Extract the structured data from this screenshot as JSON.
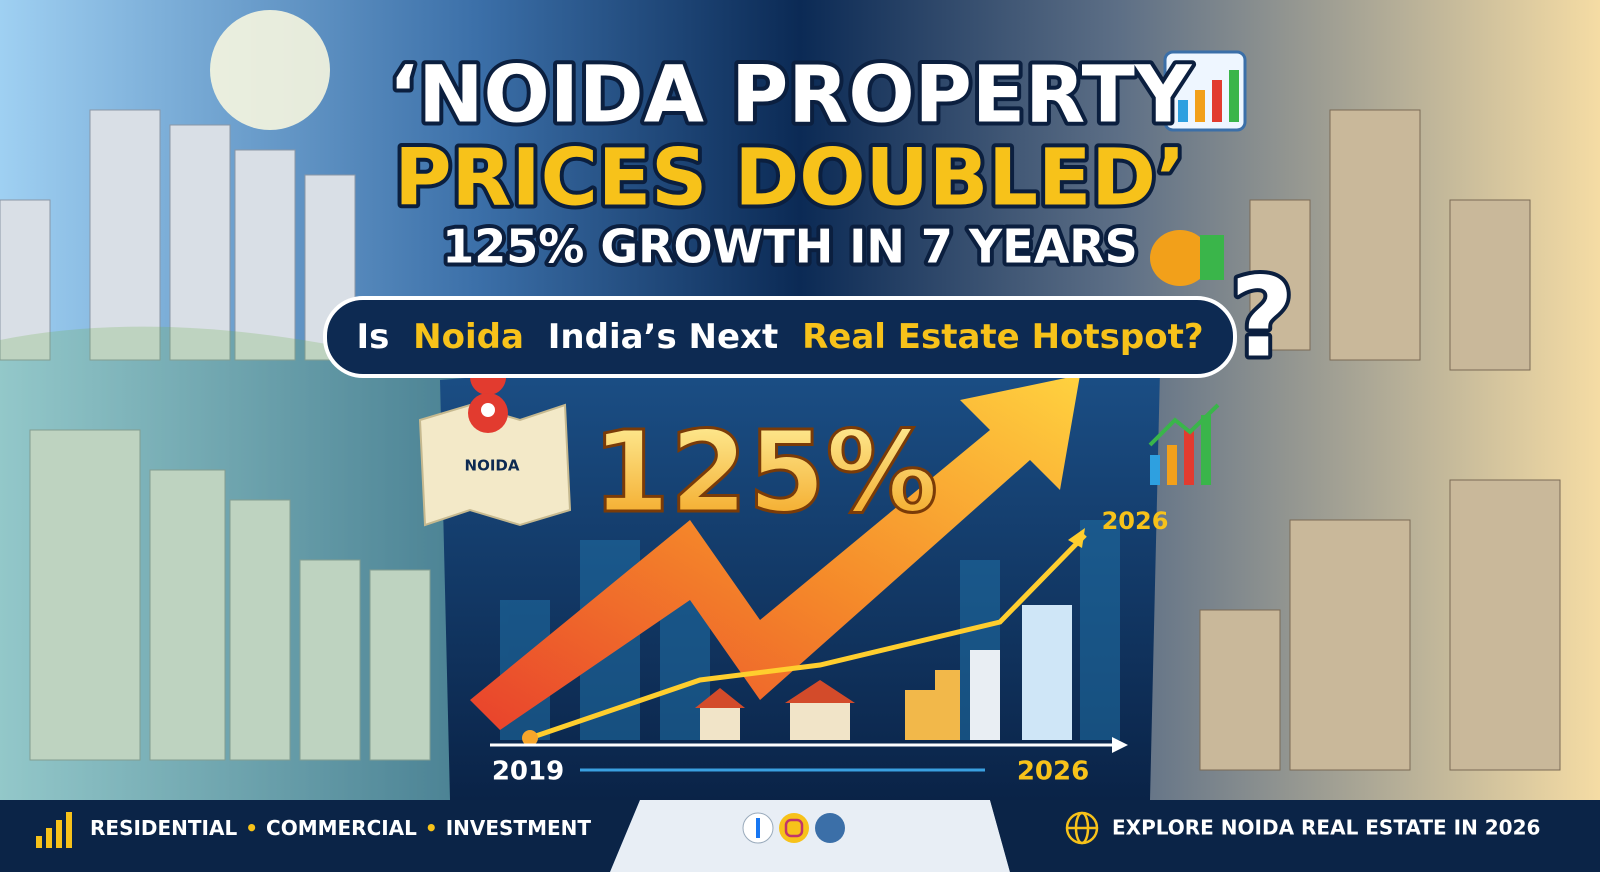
{
  "headline": {
    "line1": "‘NOIDA PROPERTY",
    "line2": "PRICES DOUBLED’",
    "line3": "125% GROWTH IN 7 YEARS"
  },
  "question": {
    "parts": [
      "Is",
      "Noida",
      "India’s Next",
      "Real Estate Hotspot?"
    ],
    "mark": "?"
  },
  "graphic": {
    "growth": "125%",
    "map_label": "NOIDA",
    "peak_label": "2026",
    "start_year": "2019",
    "end_year": "2026"
  },
  "footer": {
    "segments": [
      "RESIDENTIAL",
      "COMMERCIAL",
      "INVESTMENT"
    ],
    "cta": "EXPLORE NOIDA REAL ESTATE IN 2026"
  }
}
